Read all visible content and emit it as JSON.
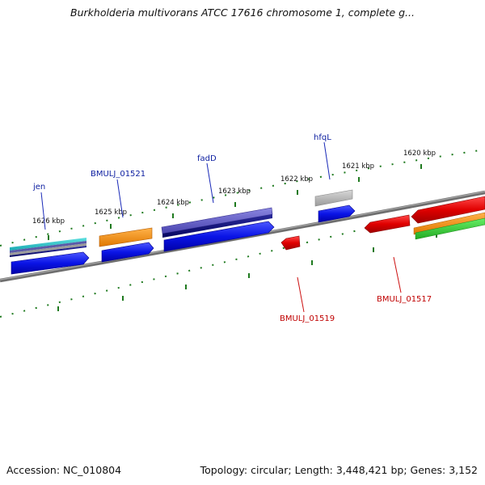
{
  "title": "Burkholderia multivorans ATCC 17616 chromosome 1, complete g...",
  "footer": {
    "accession": "Accession: NC_010804",
    "topology": "Topology: circular; Length: 3,448,421 bp; Genes: 3,152"
  },
  "colors": {
    "backbone": "#7a7a7a",
    "ticks": "#1f7a1f",
    "cds_blue": "#0a14e6",
    "cds_red": "#e00000",
    "gene_label_blue": "#0c1ea0",
    "gene_label_red": "#c00000"
  },
  "scale_labels": [
    "1626 kbp",
    "1625 kbp",
    "1624 kbp",
    "1623 kbp",
    "1622 kbp",
    "1621 kbp",
    "1620 kbp"
  ],
  "gene_labels": {
    "top": [
      "jen",
      "BMULJ_01521",
      "fadD",
      "hfqL"
    ],
    "bottom": [
      "BMULJ_01519",
      "BMULJ_01517"
    ]
  }
}
